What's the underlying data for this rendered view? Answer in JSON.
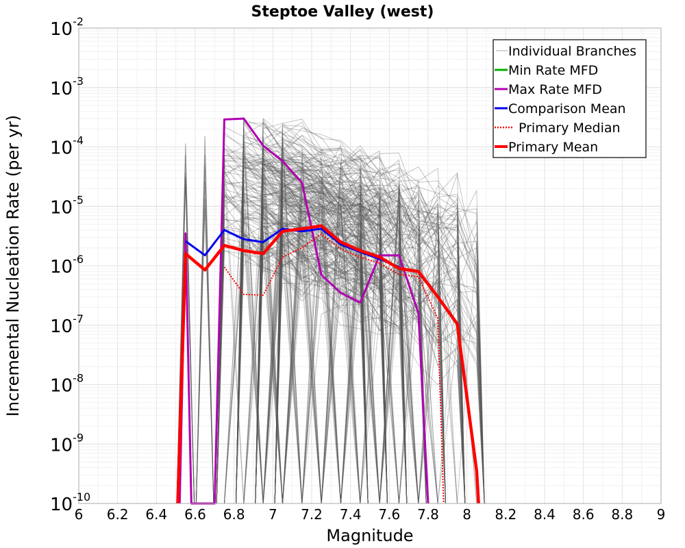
{
  "chart_data": {
    "type": "line",
    "title": "Steptoe Valley (west)",
    "xlabel": "Magnitude",
    "ylabel": "Incremental Nucleation Rate (per yr)",
    "xlim": [
      6,
      9
    ],
    "ylim": [
      1e-10,
      0.01
    ],
    "y_scale": "log",
    "grid": true,
    "legend_position": "top-right",
    "x_ticks": [
      "6",
      "6.2",
      "6.4",
      "6.6",
      "6.8",
      "7",
      "7.2",
      "7.4",
      "7.6",
      "7.8",
      "8",
      "8.2",
      "8.4",
      "8.6",
      "8.8",
      "9"
    ],
    "y_ticks": [
      {
        "base": "10",
        "exp": "-2"
      },
      {
        "base": "10",
        "exp": "-3"
      },
      {
        "base": "10",
        "exp": "-4"
      },
      {
        "base": "10",
        "exp": "-5"
      },
      {
        "base": "10",
        "exp": "-6"
      },
      {
        "base": "10",
        "exp": "-7"
      },
      {
        "base": "10",
        "exp": "-8"
      },
      {
        "base": "10",
        "exp": "-9"
      },
      {
        "base": "10",
        "exp": "-10"
      }
    ],
    "series": [
      {
        "name": "Individual Branches",
        "color": "#595959",
        "style": "thin",
        "description_of_branches": "many overlapping gray lines spanning M6.55–8.05"
      },
      {
        "name": "Min Rate MFD",
        "color": "#00b000",
        "style": "solid",
        "x": [],
        "y": []
      },
      {
        "name": "Max Rate MFD",
        "color": "#b000b0",
        "style": "solid",
        "x": [
          6.52,
          6.55,
          6.58,
          6.7,
          6.75,
          6.85,
          6.95,
          7.05,
          7.15,
          7.25,
          7.35,
          7.45,
          7.55,
          7.65,
          7.75,
          7.8
        ],
        "y": [
          1e-10,
          3.5e-06,
          1e-10,
          1e-10,
          0.00029,
          0.0003,
          0.000105,
          5.8e-05,
          2.5e-05,
          7e-07,
          3.5e-07,
          2.4e-07,
          1.5e-06,
          1.5e-06,
          1.6e-07,
          1e-10
        ]
      },
      {
        "name": "Comparison Mean",
        "color": "#0000ee",
        "style": "solid",
        "x": [
          6.55,
          6.65,
          6.75,
          6.85,
          6.95,
          7.05,
          7.15,
          7.25,
          7.35,
          7.45,
          7.55,
          7.65
        ],
        "y": [
          2.6e-06,
          1.5e-06,
          4e-06,
          2.8e-06,
          2.5e-06,
          4.2e-06,
          3.8e-06,
          4.2e-06,
          2.3e-06,
          1.7e-06,
          1.3e-06,
          9.5e-07
        ]
      },
      {
        "name": "Primary Median",
        "color": "#ff0000",
        "style": "dotted",
        "x": [
          6.75,
          6.85,
          6.95,
          7.05,
          7.15,
          7.25,
          7.35,
          7.45,
          7.55,
          7.65,
          7.75,
          7.85,
          7.88
        ],
        "y": [
          9.5e-07,
          3.3e-07,
          3.2e-07,
          1.4e-06,
          2e-06,
          3.4e-06,
          1.9e-06,
          1.4e-06,
          1.1e-06,
          7.2e-07,
          6.5e-07,
          1.3e-07,
          1e-10
        ]
      },
      {
        "name": "Primary Mean",
        "color": "#ff0000",
        "style": "thick",
        "x": [
          6.51,
          6.55,
          6.65,
          6.75,
          6.85,
          6.95,
          7.05,
          7.15,
          7.25,
          7.35,
          7.45,
          7.55,
          7.65,
          7.75,
          7.85,
          7.95,
          8.05,
          8.06
        ],
        "y": [
          1e-10,
          1.6e-06,
          8.5e-07,
          2.2e-06,
          1.8e-06,
          1.6e-06,
          3.8e-06,
          4.2e-06,
          4.7e-06,
          2.5e-06,
          1.8e-06,
          1.4e-06,
          9e-07,
          8e-07,
          3e-07,
          1.05e-07,
          3.5e-10,
          1e-10
        ]
      }
    ]
  }
}
